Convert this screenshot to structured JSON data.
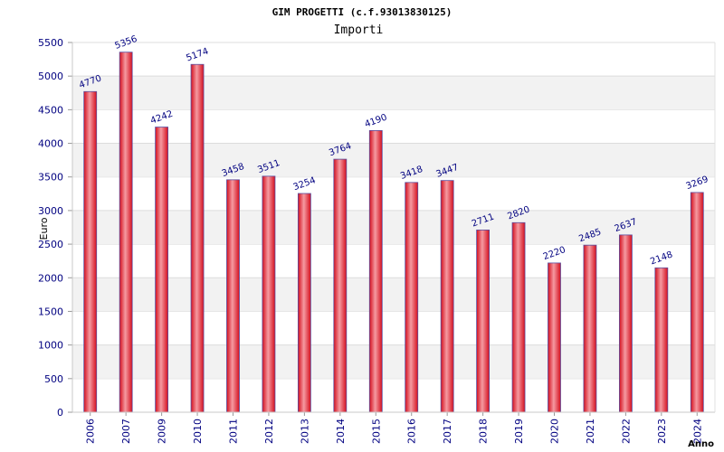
{
  "chart_data": {
    "type": "bar",
    "title": "GIM PROGETTI (c.f.93013830125)",
    "subtitle": "Importi",
    "xlabel": "Anno",
    "ylabel": "Euro",
    "ylim": [
      0,
      5500
    ],
    "yticks": [
      0,
      500,
      1000,
      1500,
      2000,
      2500,
      3000,
      3500,
      4000,
      4500,
      5000,
      5500
    ],
    "categories": [
      "2006",
      "2007",
      "2009",
      "2010",
      "2011",
      "2012",
      "2013",
      "2014",
      "2015",
      "2016",
      "2017",
      "2018",
      "2019",
      "2020",
      "2021",
      "2022",
      "2023",
      "2024"
    ],
    "values": [
      4770,
      5356,
      4242,
      5174,
      3458,
      3511,
      3254,
      3764,
      4190,
      3418,
      3447,
      2711,
      2820,
      2220,
      2485,
      2637,
      2148,
      3269
    ],
    "grid": true,
    "colors": {
      "bar_edge": "#d40f1e",
      "bar_mid": "#f28b93",
      "bar_outline": "#5a4fa0",
      "band": "#f2f2f2",
      "text": "#000080"
    }
  }
}
